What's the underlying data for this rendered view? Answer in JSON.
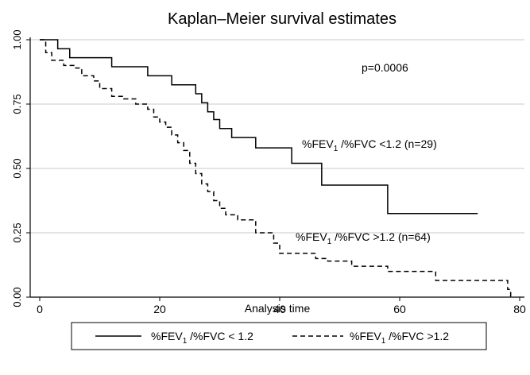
{
  "chart_data": {
    "type": "line",
    "title": "Kaplan–Meier survival estimates",
    "xlabel": "Analysis time",
    "ylabel": "",
    "xlim": [
      0,
      80
    ],
    "ylim": [
      0,
      1
    ],
    "xticks": [
      "0",
      "20",
      "40",
      "60",
      "80"
    ],
    "yticks": [
      "0.00",
      "0.25",
      "0.50",
      "0.75",
      "1.00"
    ],
    "grid": "horizontal",
    "annotations": {
      "pvalue": "p=0.0006",
      "label_a": "%FEV1 /%FVC <1.2 (n=29)",
      "label_b": "%FEV1 /%FVC >1.2 (n=64)"
    },
    "legend": {
      "placement": "bottom",
      "entries": [
        "%FEV1 /%FVC < 1.2",
        "%FEV1 /%FVC >1.2"
      ]
    },
    "series": [
      {
        "name": "%FEV1 /%FVC < 1.2",
        "style": "solid",
        "color": "#000000",
        "x": [
          0,
          3,
          5,
          12,
          18,
          22,
          26,
          27,
          28,
          29,
          30,
          32,
          36,
          42,
          47,
          58,
          73
        ],
        "y": [
          1.0,
          0.965,
          0.93,
          0.895,
          0.86,
          0.825,
          0.79,
          0.755,
          0.72,
          0.69,
          0.655,
          0.62,
          0.58,
          0.52,
          0.435,
          0.325,
          0.325
        ]
      },
      {
        "name": "%FEV1 /%FVC >1.2",
        "style": "dashed",
        "color": "#000000",
        "x": [
          0,
          1,
          2,
          4,
          6,
          7,
          9,
          10,
          12,
          14,
          16,
          18,
          19,
          20,
          21,
          22,
          23,
          24,
          25,
          26,
          27,
          28,
          29,
          30,
          31,
          33,
          36,
          39,
          40,
          46,
          48,
          52,
          58,
          66,
          78,
          78.5
        ],
        "y": [
          1.0,
          0.95,
          0.92,
          0.9,
          0.89,
          0.86,
          0.84,
          0.81,
          0.78,
          0.77,
          0.75,
          0.73,
          0.7,
          0.68,
          0.66,
          0.63,
          0.6,
          0.57,
          0.52,
          0.48,
          0.44,
          0.41,
          0.375,
          0.345,
          0.32,
          0.3,
          0.25,
          0.21,
          0.17,
          0.15,
          0.14,
          0.12,
          0.1,
          0.065,
          0.03,
          0.0
        ]
      }
    ]
  }
}
